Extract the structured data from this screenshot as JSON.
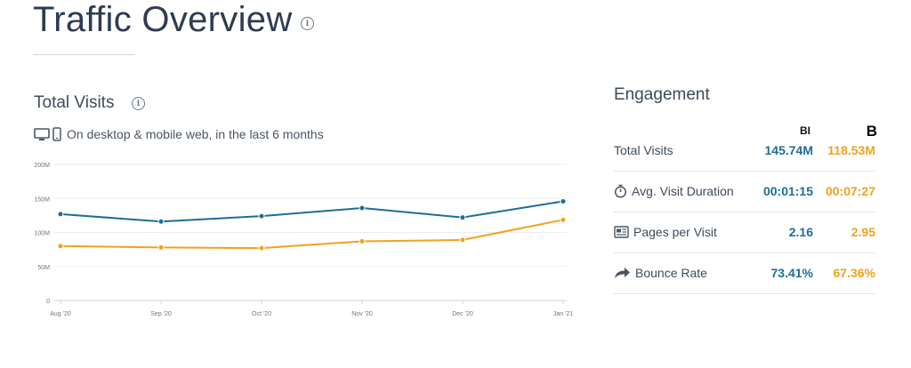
{
  "header": {
    "title": "Traffic Overview"
  },
  "visits": {
    "title": "Total Visits",
    "device_text": "On desktop & mobile web, in the last 6 months"
  },
  "chart_data": {
    "type": "line",
    "categories": [
      "Aug '20",
      "Sep '20",
      "Oct '20",
      "Nov '20",
      "Dec '20",
      "Jan '21"
    ],
    "series": [
      {
        "color": "#1e6d99",
        "values": [
          127,
          116,
          124,
          136,
          122,
          145.74
        ]
      },
      {
        "color": "#f2a11b",
        "values": [
          80,
          78,
          77,
          87,
          89,
          118.53
        ]
      }
    ],
    "yticks": [
      0,
      50,
      100,
      150,
      200
    ],
    "ytick_labels": [
      "0",
      "50M",
      "100M",
      "150M",
      "200M"
    ],
    "ylim": [
      0,
      200
    ],
    "grid": true
  },
  "engagement": {
    "title": "Engagement",
    "col_a": "BI",
    "col_b": "B",
    "rows": [
      {
        "label": "Total Visits",
        "a": "145.74M",
        "b": "118.53M",
        "icon": ""
      },
      {
        "label": "Avg. Visit Duration",
        "a": "00:01:15",
        "b": "00:07:27",
        "icon": "stopwatch-icon"
      },
      {
        "label": "Pages per Visit",
        "a": "2.16",
        "b": "2.95",
        "icon": "pages-icon"
      },
      {
        "label": "Bounce Rate",
        "a": "73.41%",
        "b": "67.36%",
        "icon": "bounce-arrow-icon"
      }
    ]
  }
}
